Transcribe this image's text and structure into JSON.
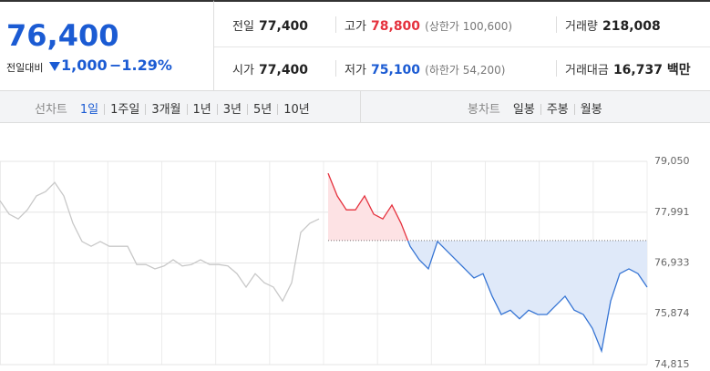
{
  "header": {
    "price": "76,400",
    "change_label": "전일대비",
    "change": "1,000",
    "change_pct": "−1.29%",
    "stats": [
      {
        "label": "전일",
        "value": "77,400"
      },
      {
        "label": "고가",
        "value": "78,800",
        "note": "(상한가 100,600)"
      },
      {
        "label": "거래량",
        "value": "218,008"
      },
      {
        "label": "시가",
        "value": "77,400"
      },
      {
        "label": "저가",
        "value": "75,100",
        "note": "(하한가 54,200)"
      },
      {
        "label": "거래대금",
        "value": "16,737 백만"
      }
    ]
  },
  "tabs": {
    "line_label": "선차트",
    "line_tabs": [
      "1일",
      "1주일",
      "3개월",
      "1년",
      "3년",
      "5년",
      "10년"
    ],
    "candle_label": "봉차트",
    "candle_tabs": [
      "일봉",
      "주봉",
      "월봉"
    ]
  },
  "chart_data": {
    "type": "line",
    "baseline": 77400,
    "ylim": [
      74815,
      79050
    ],
    "yticks": [
      {
        "value": 74815,
        "label": "74,815"
      },
      {
        "value": 75874,
        "label": "75,874"
      },
      {
        "value": 76933,
        "label": "76,933"
      },
      {
        "value": 77991,
        "label": "77,991"
      },
      {
        "value": 79050,
        "label": "79,050"
      }
    ],
    "grid": true,
    "series": [
      {
        "color": "#c8c8c8",
        "values": [
          78230,
          77950,
          77850,
          78040,
          78330,
          78420,
          78610,
          78330,
          77760,
          77380,
          77280,
          77380,
          77280,
          77280,
          77280,
          76900,
          76900,
          76810,
          76870,
          77000,
          76870,
          76900,
          77000,
          76900,
          76900,
          76870,
          76710,
          76430,
          76710,
          76520,
          76430,
          76140,
          76520,
          77570,
          77760,
          77850,
          null,
          null,
          null,
          null,
          null,
          null,
          null,
          null,
          null,
          null,
          null,
          null,
          null,
          null,
          null,
          null,
          null,
          null,
          null,
          null,
          null,
          null,
          null,
          null,
          null,
          null,
          null,
          null,
          null,
          null,
          null,
          null,
          null,
          null,
          null,
          null
        ]
      },
      {
        "up_color": "#e5323e",
        "down_color": "#3574d4",
        "up_fill": "#fde2e4",
        "down_fill": "#dfe9f9",
        "values": [
          null,
          null,
          null,
          null,
          null,
          null,
          null,
          null,
          null,
          null,
          null,
          null,
          null,
          null,
          null,
          null,
          null,
          null,
          null,
          null,
          null,
          null,
          null,
          null,
          null,
          null,
          null,
          null,
          null,
          null,
          null,
          null,
          null,
          null,
          null,
          null,
          78800,
          78330,
          78040,
          78040,
          78330,
          77950,
          77850,
          78140,
          77760,
          77280,
          77000,
          76810,
          77380,
          77190,
          77000,
          76810,
          76620,
          76710,
          76240,
          75860,
          75950,
          75770,
          75950,
          75860,
          75860,
          76050,
          76240,
          75950,
          75860,
          75570,
          75100,
          76140,
          76710,
          76810,
          76710,
          76430
        ]
      }
    ]
  }
}
